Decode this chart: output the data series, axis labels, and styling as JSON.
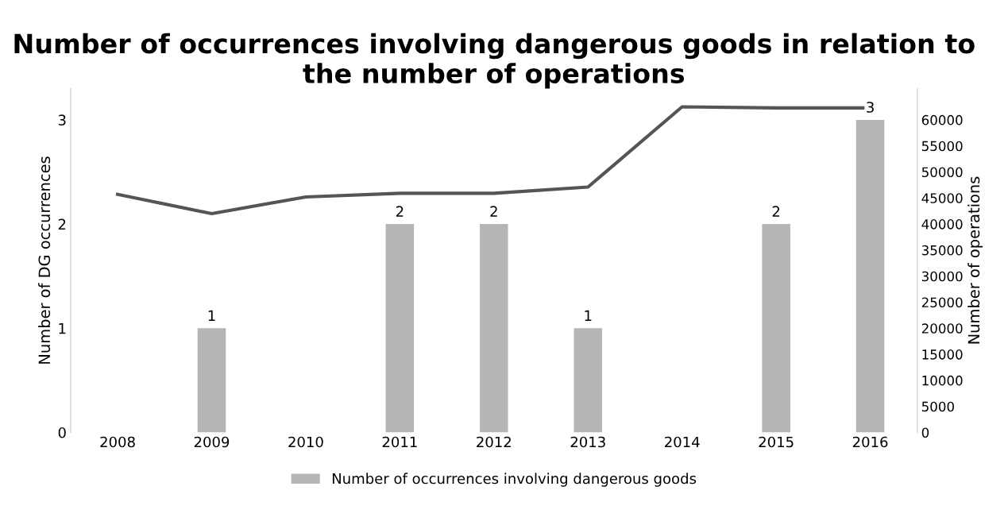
{
  "chart_data": {
    "type": "bar",
    "title": "Number of occurrences involving dangerous goods in relation to the number of operations",
    "categories": [
      "2008",
      "2009",
      "2010",
      "2011",
      "2012",
      "2013",
      "2014",
      "2015",
      "2016"
    ],
    "series": [
      {
        "name": "Number of occurrences involving dangerous goods",
        "color": "#b5b5b5",
        "values": [
          0,
          1,
          0,
          2,
          2,
          1,
          0,
          2,
          3
        ],
        "value_labels": [
          null,
          "1",
          null,
          "2",
          "2",
          "1",
          null,
          "2",
          "3"
        ]
      },
      {
        "type": "line",
        "axis": "y2",
        "color": "#555555",
        "values": [
          45700,
          42000,
          45200,
          45900,
          45900,
          47100,
          62500,
          62300,
          62300
        ]
      }
    ],
    "ylabel": "Number of DG occurrences",
    "y2label": "Number of operations",
    "ylim": [
      0,
      3.3
    ],
    "yticks": [
      0,
      1,
      2,
      3
    ],
    "y2lim": [
      0,
      66000
    ],
    "y2ticks": [
      0,
      5000,
      10000,
      15000,
      20000,
      25000,
      30000,
      35000,
      40000,
      45000,
      50000,
      55000,
      60000
    ],
    "grid": false,
    "legend": "bottom"
  }
}
